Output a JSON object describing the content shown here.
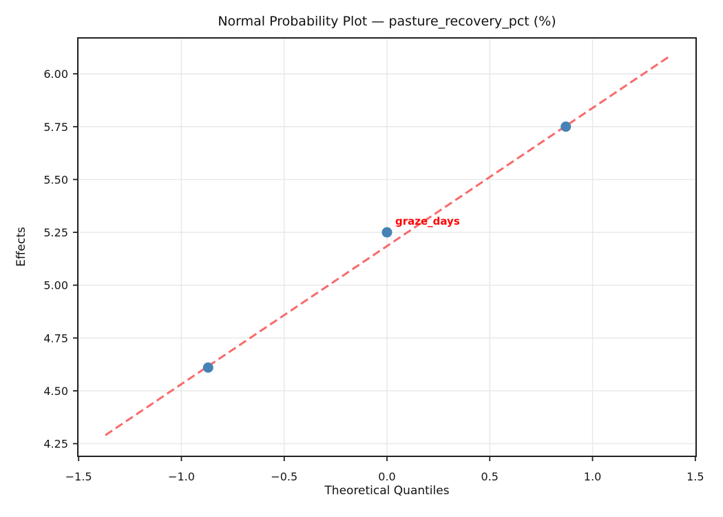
{
  "chart_data": {
    "type": "scatter",
    "title": "Normal Probability Plot — pasture_recovery_pct (%)",
    "xlabel": "Theoretical Quantiles",
    "ylabel": "Effects",
    "xlim": [
      -1.504,
      1.504
    ],
    "ylim": [
      4.19,
      6.17
    ],
    "x_ticks": [
      -1.5,
      -1.0,
      -0.5,
      0.0,
      0.5,
      1.0,
      1.5
    ],
    "x_tick_labels": [
      "−1.5",
      "−1.0",
      "−0.5",
      "0.0",
      "0.5",
      "1.0",
      "1.5"
    ],
    "y_ticks": [
      4.25,
      4.5,
      4.75,
      5.0,
      5.25,
      5.5,
      5.75,
      6.0
    ],
    "y_tick_labels": [
      "4.25",
      "4.50",
      "4.75",
      "5.00",
      "5.25",
      "5.50",
      "5.75",
      "6.00"
    ],
    "grid": true,
    "legend_position": "none",
    "points": [
      {
        "x": -0.87,
        "y": 4.61,
        "label": ""
      },
      {
        "x": 0.0,
        "y": 5.25,
        "label": "graze_days"
      },
      {
        "x": 0.87,
        "y": 5.75,
        "label": ""
      }
    ],
    "fit_line": {
      "x_start": -1.37,
      "y_start": 4.29,
      "x_end": 1.37,
      "y_end": 6.08,
      "style": "dashed"
    },
    "annotation": {
      "text": "graze_days",
      "x": 0.0,
      "y": 5.25,
      "offset": [
        12,
        -25
      ]
    },
    "colors": {
      "point": "#4682b4",
      "fit_line": "#f96a6a",
      "grid": "#e7e7e7",
      "spine": "#222222",
      "tick": "#222222",
      "text": "#151515",
      "annotation": "#ff0000"
    }
  }
}
